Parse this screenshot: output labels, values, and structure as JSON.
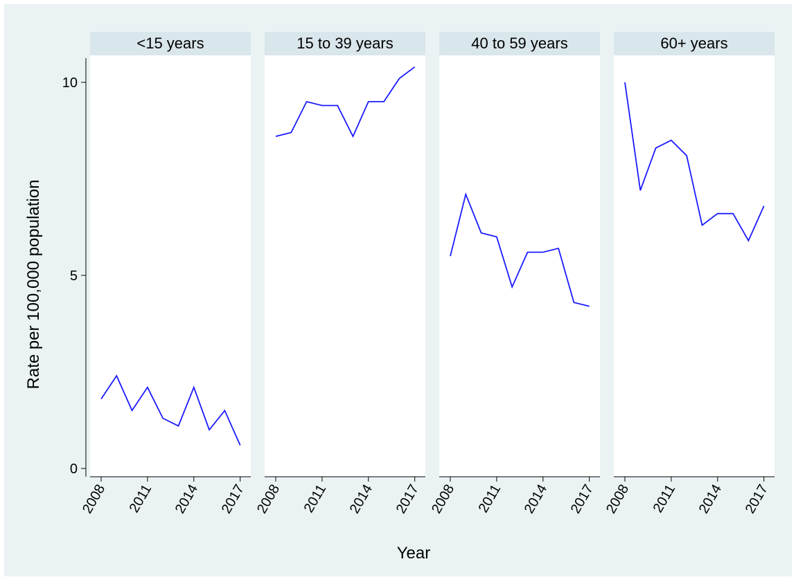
{
  "chart_data": {
    "type": "line",
    "layout": "small-multiples",
    "xlabel": "Year",
    "ylabel": "Rate per 100,000 population",
    "ylim": [
      0,
      10.5
    ],
    "yticks": [
      0,
      5,
      10
    ],
    "xticks": [
      2008,
      2011,
      2014,
      2017
    ],
    "x": [
      2008,
      2009,
      2010,
      2011,
      2012,
      2013,
      2014,
      2015,
      2016,
      2017
    ],
    "grid": false,
    "colors": {
      "outer_background": "#eaf2f3",
      "panel_background": "#ffffff",
      "strip_background": "#d9e6eb",
      "line": "#1a1aff"
    },
    "panels": [
      {
        "title": "<15 years",
        "values": [
          1.8,
          2.4,
          1.5,
          2.1,
          1.3,
          1.1,
          2.1,
          1.0,
          1.5,
          0.6
        ]
      },
      {
        "title": "15 to 39 years",
        "values": [
          8.6,
          8.7,
          9.5,
          9.4,
          9.4,
          8.6,
          9.5,
          9.5,
          10.1,
          10.4
        ]
      },
      {
        "title": "40 to 59 years",
        "values": [
          5.5,
          7.1,
          6.1,
          6.0,
          4.7,
          5.6,
          5.6,
          5.7,
          4.3,
          4.2
        ]
      },
      {
        "title": "60+ years",
        "values": [
          10.0,
          7.2,
          8.3,
          8.5,
          8.1,
          6.3,
          6.6,
          6.6,
          5.9,
          6.8
        ]
      }
    ]
  }
}
